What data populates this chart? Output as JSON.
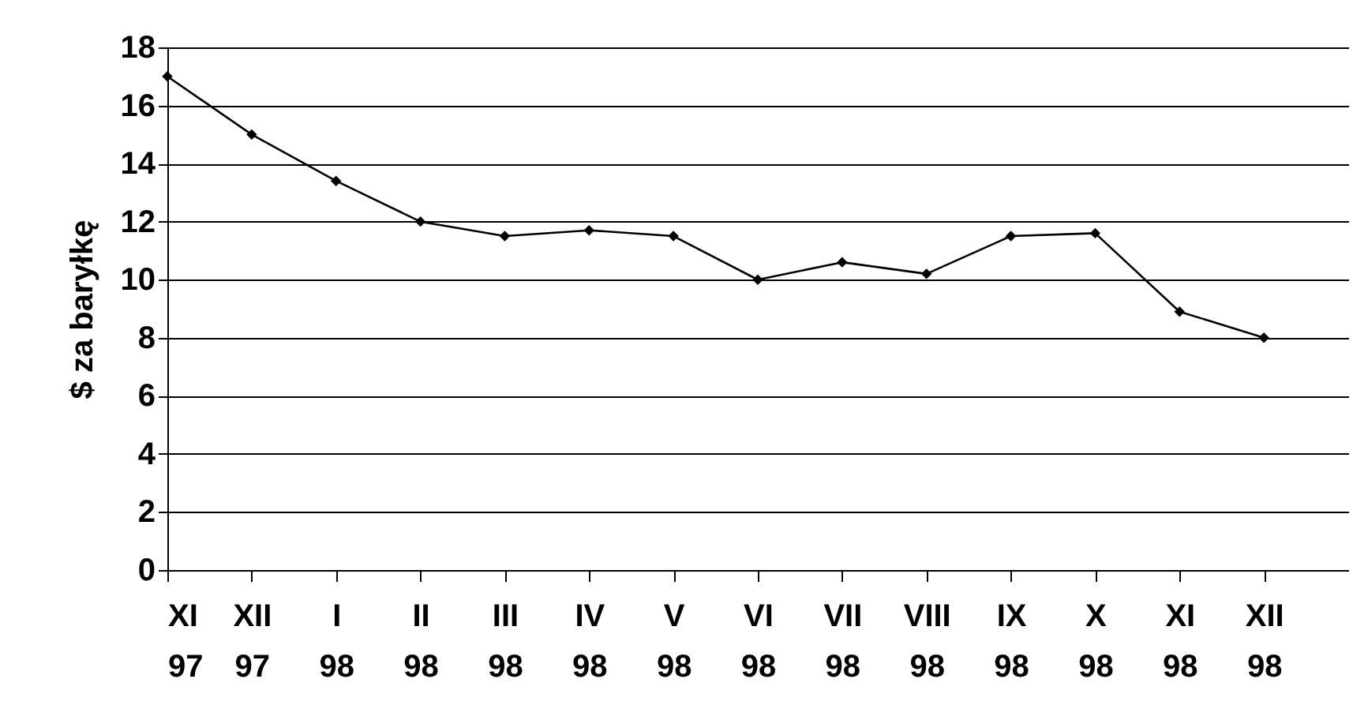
{
  "chart_data": {
    "type": "line",
    "ylabel": "$ za baryłkę",
    "categories": [
      "XI 97",
      "XII 97",
      "I 98",
      "II 98",
      "III 98",
      "IV 98",
      "V 98",
      "VI 98",
      "VII 98",
      "VIII 98",
      "IX 98",
      "X 98",
      "XI 98",
      "XII 98"
    ],
    "series": [
      {
        "color": "#000000",
        "values": [
          17,
          15,
          13.4,
          12,
          11.5,
          11.7,
          11.5,
          10,
          10.6,
          10.2,
          11.5,
          11.6,
          8.9,
          8
        ]
      }
    ],
    "ylim": [
      0,
      18
    ],
    "yticks": [
      0,
      2,
      4,
      6,
      8,
      10,
      12,
      14,
      16,
      18
    ],
    "grid": "y",
    "marker": "diamond",
    "line_style": "solid"
  }
}
